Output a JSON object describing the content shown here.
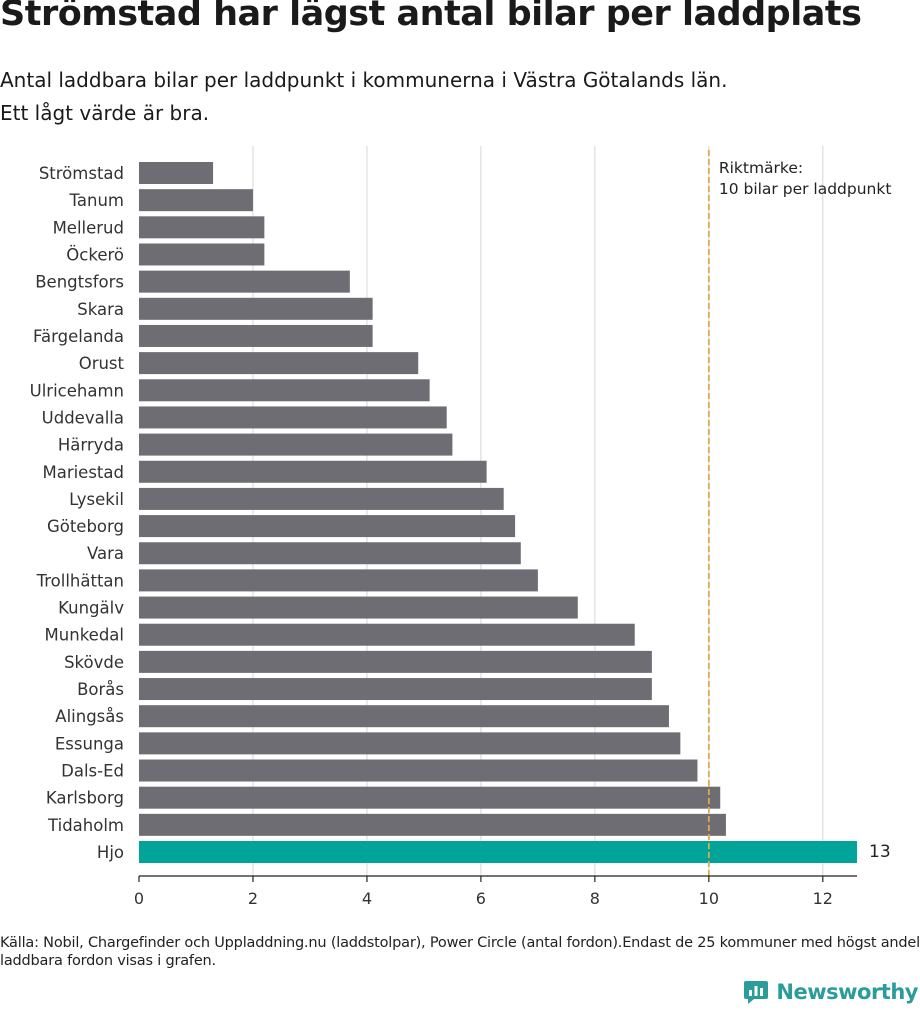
{
  "header": {
    "title": "Strömstad har lägst antal bilar per laddplats",
    "subtitle_line1": "Antal laddbara bilar per laddpunkt i kommunerna i Västra Götalands län.",
    "subtitle_line2": "Ett lågt värde är bra."
  },
  "footer": {
    "source": "Källa: Nobil, Chargefinder och Uppladdning.nu (laddstolpar), Power Circle (antal fordon).Endast de 25 kommuner med högst andel laddbara fordon visas i grafen.",
    "logo_text": "Newsworthy"
  },
  "colors": {
    "bar": "#6e6d73",
    "highlight": "#00a499",
    "reference_line": "#e0a94a",
    "grid": "#d6d6d6",
    "logo": "#2a9d9a"
  },
  "chart_data": {
    "type": "bar",
    "orientation": "horizontal",
    "categories": [
      "Strömstad",
      "Tanum",
      "Mellerud",
      "Öckerö",
      "Bengtsfors",
      "Skara",
      "Färgelanda",
      "Orust",
      "Ulricehamn",
      "Uddevalla",
      "Härryda",
      "Mariestad",
      "Lysekil",
      "Göteborg",
      "Vara",
      "Trollhättan",
      "Kungälv",
      "Munkedal",
      "Skövde",
      "Borås",
      "Alingsås",
      "Essunga",
      "Dals-Ed",
      "Karlsborg",
      "Tidaholm",
      "Hjo"
    ],
    "values": [
      1.3,
      2.0,
      2.2,
      2.2,
      3.7,
      4.1,
      4.1,
      4.9,
      5.1,
      5.4,
      5.5,
      6.1,
      6.4,
      6.6,
      6.7,
      7.0,
      7.7,
      8.7,
      9.0,
      9.0,
      9.3,
      9.5,
      9.8,
      10.2,
      10.3,
      12.6
    ],
    "highlight_category": "Hjo",
    "highlight_value_label": "13",
    "xlim": [
      0,
      12.6
    ],
    "xticks": [
      0,
      2,
      4,
      6,
      8,
      10,
      12
    ],
    "grid": true,
    "reference": {
      "value": 10,
      "label_line1": "Riktmärke:",
      "label_line2": "10 bilar per laddpunkt"
    }
  }
}
